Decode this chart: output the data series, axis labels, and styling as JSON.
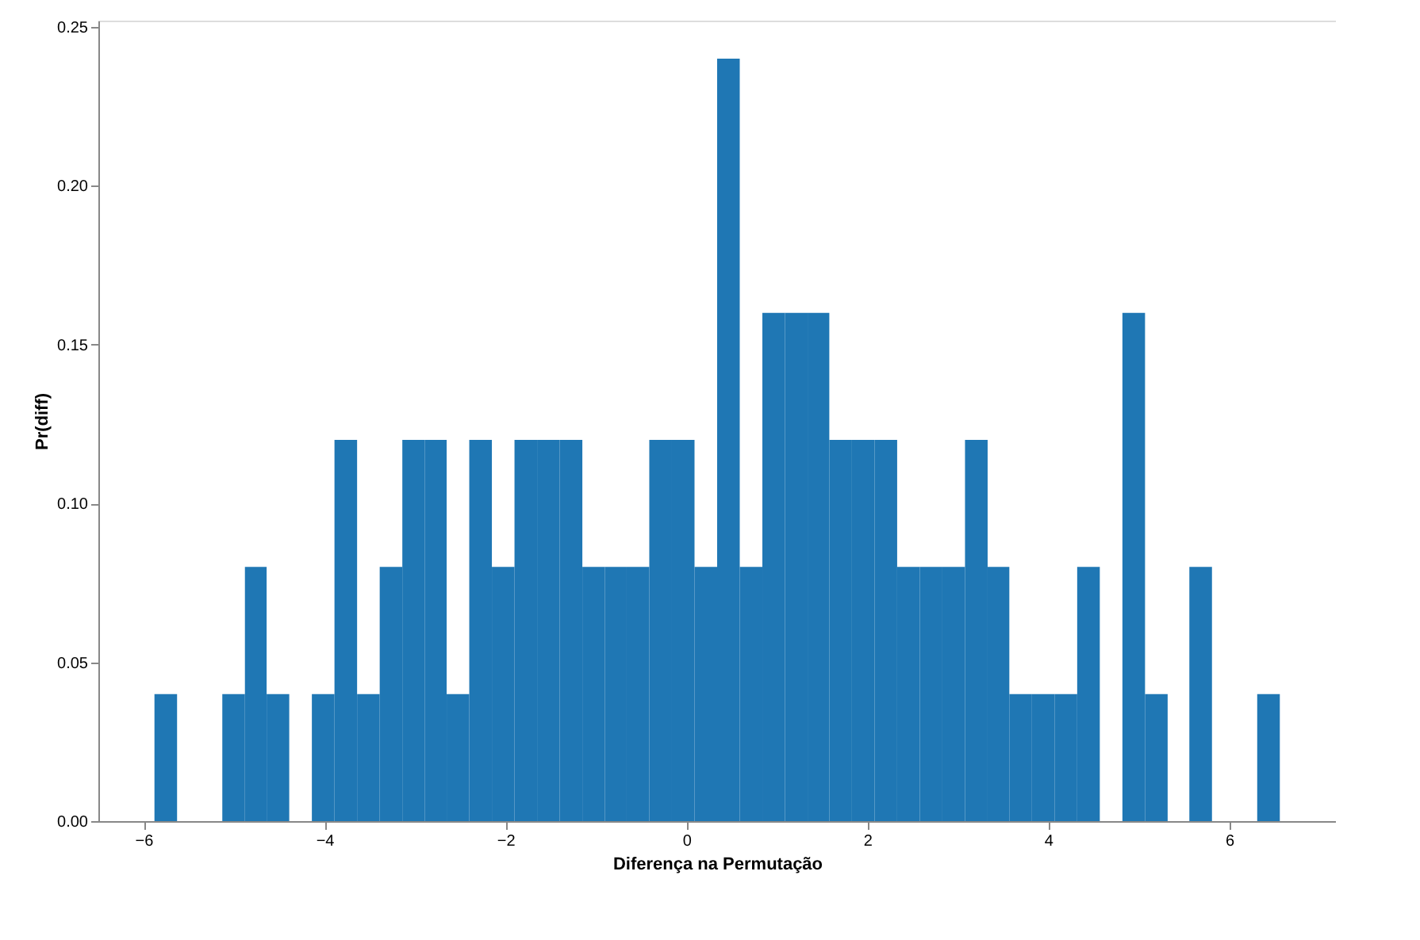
{
  "chart_data": {
    "type": "histogram",
    "xlabel": "Diferença na Permutação",
    "ylabel": "Pr(diff)",
    "color": "#1f77b4",
    "bins": [
      -5.88,
      -5.63,
      -5.13,
      -4.88,
      -4.64,
      -4.39,
      -4.14,
      -3.89,
      -3.64,
      -3.39,
      -3.14,
      -2.89,
      -2.65,
      -2.4,
      -2.15,
      -1.9,
      -1.65,
      -1.4,
      -1.15,
      -0.9,
      -0.66,
      -0.41,
      -0.16,
      0.09,
      0.34,
      0.59,
      0.84,
      1.09,
      1.34,
      1.58,
      1.83,
      2.08,
      2.33,
      2.58,
      2.83,
      3.08,
      3.33,
      3.57,
      3.82,
      4.07,
      4.32,
      4.57,
      4.82,
      5.07,
      5.32,
      5.56,
      5.81,
      6.31,
      6.56
    ],
    "values": [
      0.04,
      0,
      0.04,
      0.08,
      0.04,
      0,
      0.04,
      0.12,
      0.04,
      0.08,
      0.12,
      0.12,
      0.04,
      0.12,
      0.08,
      0.12,
      0.12,
      0.12,
      0.08,
      0.08,
      0.08,
      0.12,
      0.12,
      0.08,
      0.24,
      0.08,
      0.16,
      0.16,
      0.16,
      0.12,
      0.12,
      0.12,
      0.08,
      0.08,
      0.08,
      0.12,
      0.08,
      0.04,
      0.04,
      0.04,
      0.08,
      0,
      0.16,
      0.04,
      0,
      0.08,
      0,
      0.04
    ],
    "xlim": [
      -6.5,
      7.18
    ],
    "xticks": [
      {
        "value": -6,
        "label": "−6"
      },
      {
        "value": -4,
        "label": "−4"
      },
      {
        "value": -2,
        "label": "−2"
      },
      0,
      2,
      4,
      6
    ],
    "ylim": [
      0,
      0.252
    ],
    "yticks": [
      {
        "value": 0,
        "label": "0.00"
      },
      {
        "value": 0.05,
        "label": "0.05"
      },
      {
        "value": 0.1,
        "label": "0.10"
      },
      {
        "value": 0.15,
        "label": "0.15"
      },
      {
        "value": 0.2,
        "label": "0.20"
      },
      {
        "value": 0.25,
        "label": "0.25"
      }
    ],
    "grid": false
  }
}
